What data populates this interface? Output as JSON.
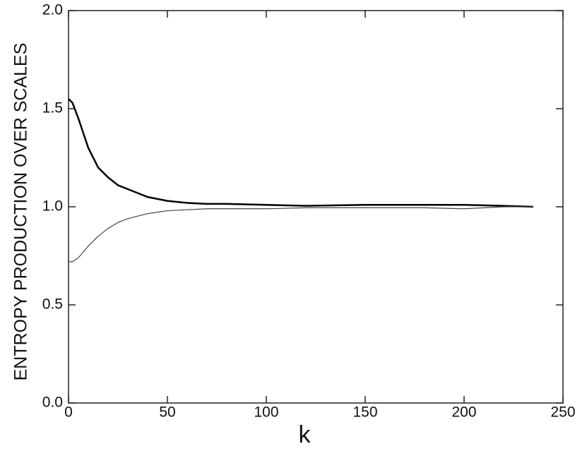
{
  "chart_data": {
    "type": "line",
    "ylabel": "ENTROPY PRODUCTION OVER SCALES",
    "xlabel": "k",
    "x": [
      0,
      2,
      5,
      10,
      15,
      20,
      25,
      30,
      40,
      50,
      60,
      70,
      80,
      100,
      120,
      150,
      180,
      200,
      220,
      235
    ],
    "series": [
      {
        "color": "#000000",
        "values": [
          1.55,
          1.53,
          1.45,
          1.3,
          1.2,
          1.15,
          1.11,
          1.09,
          1.05,
          1.03,
          1.02,
          1.015,
          1.015,
          1.01,
          1.005,
          1.01,
          1.01,
          1.01,
          1.005,
          1.0
        ]
      },
      {
        "color": "#444444",
        "values": [
          0.72,
          0.72,
          0.74,
          0.8,
          0.85,
          0.89,
          0.92,
          0.94,
          0.965,
          0.98,
          0.985,
          0.99,
          0.99,
          0.99,
          0.995,
          0.995,
          0.995,
          0.99,
          1.0,
          1.0
        ]
      }
    ],
    "xlim": [
      0,
      250
    ],
    "xticks": [
      0,
      50,
      100,
      150,
      200,
      250
    ],
    "ylim": [
      0,
      2
    ],
    "yticks": [
      {
        "value": 0,
        "label": "0.0"
      },
      {
        "value": 0.5,
        "label": "0.5"
      },
      {
        "value": 1,
        "label": "1.0"
      },
      {
        "value": 1.5,
        "label": "1.5"
      },
      {
        "value": 2,
        "label": "2.0"
      }
    ]
  }
}
